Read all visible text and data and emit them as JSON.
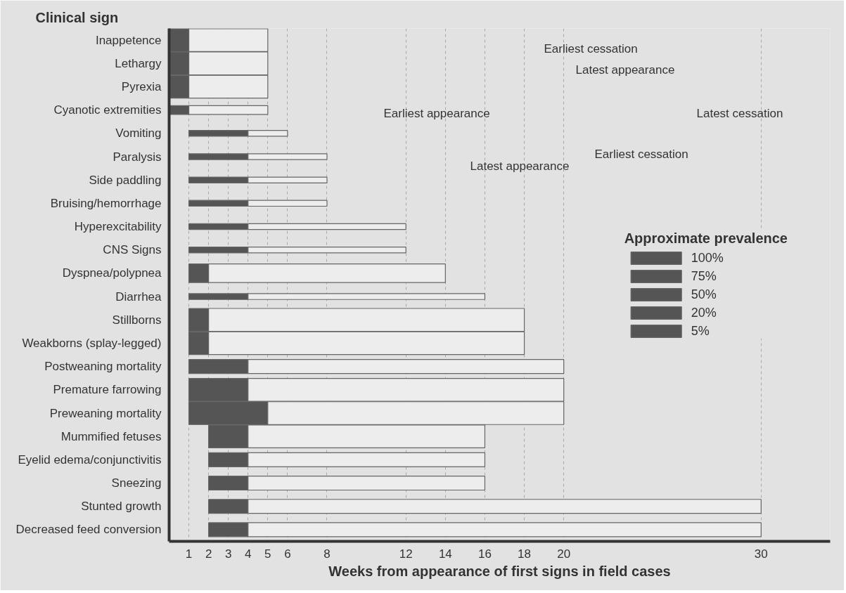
{
  "chart_data": {
    "type": "bar",
    "orientation": "horizontal",
    "ylabel": "Clinical sign",
    "xlabel": "Weeks from appearance of first signs in field cases",
    "legend_title": "Approximate prevalence",
    "categories": [
      "Inappetence",
      "Lethargy",
      "Pyrexia",
      "Cyanotic extremities",
      "Vomiting",
      "Paralysis",
      "Side paddling",
      "Bruising/hemorrhage",
      "Hyperexcitability",
      "CNS Signs",
      "Dyspnea/polypnea",
      "Diarrhea",
      "Stillborns",
      "Weakborns (splay-legged)",
      "Postweaning mortality",
      "Premature farrowing",
      "Preweaning mortality",
      "Mummified fetuses",
      "Eyelid edema/conjunctivitis",
      "Sneezing",
      "Stunted growth",
      "Decreased feed conversion"
    ],
    "series": [
      {
        "name": "100%",
        "color": "#555555",
        "base": [
          0,
          0,
          0,
          null,
          null,
          null,
          null,
          null,
          null,
          null,
          null,
          null,
          1,
          1,
          null,
          1,
          1,
          2,
          null,
          null,
          null,
          null
        ],
        "values": [
          1,
          1,
          1,
          null,
          null,
          null,
          null,
          null,
          null,
          null,
          null,
          null,
          1,
          1,
          null,
          3,
          4,
          2,
          null,
          null,
          null,
          null
        ]
      },
      {
        "color": "#ededed",
        "base": [
          1,
          1,
          1,
          null,
          null,
          null,
          null,
          null,
          null,
          null,
          null,
          null,
          2,
          2,
          null,
          4,
          5,
          4,
          null,
          null,
          null,
          null
        ],
        "values": [
          4,
          4,
          4,
          null,
          null,
          null,
          null,
          null,
          null,
          null,
          null,
          null,
          16,
          16,
          null,
          16,
          15,
          12,
          null,
          null,
          null,
          null
        ]
      },
      {
        "name": "75%",
        "color": "#555555",
        "base": [
          null,
          null,
          null,
          null,
          null,
          null,
          null,
          null,
          null,
          null,
          1,
          null,
          null,
          null,
          null,
          null,
          null,
          null,
          null,
          null,
          null,
          null
        ],
        "values": [
          null,
          null,
          null,
          null,
          null,
          null,
          null,
          null,
          null,
          null,
          1,
          null,
          null,
          null,
          null,
          null,
          null,
          null,
          null,
          null,
          null,
          null
        ]
      },
      {
        "color": "#ededed",
        "base": [
          null,
          null,
          null,
          null,
          null,
          null,
          null,
          null,
          null,
          null,
          2,
          null,
          null,
          null,
          null,
          null,
          null,
          null,
          null,
          null,
          null,
          null
        ],
        "values": [
          null,
          null,
          null,
          null,
          null,
          null,
          null,
          null,
          null,
          null,
          12,
          null,
          null,
          null,
          null,
          null,
          null,
          null,
          null,
          null,
          null,
          null
        ]
      },
      {
        "name": "50%",
        "color": "#555555",
        "base": [
          null,
          null,
          null,
          null,
          null,
          null,
          null,
          null,
          null,
          null,
          null,
          null,
          null,
          null,
          1,
          null,
          null,
          null,
          2,
          2,
          2,
          2
        ],
        "values": [
          null,
          null,
          null,
          null,
          null,
          null,
          null,
          null,
          null,
          null,
          null,
          null,
          null,
          null,
          3,
          null,
          null,
          null,
          2,
          2,
          2,
          2
        ]
      },
      {
        "color": "#ededed",
        "base": [
          null,
          null,
          null,
          null,
          null,
          null,
          null,
          null,
          null,
          null,
          null,
          null,
          null,
          null,
          4,
          null,
          null,
          null,
          4,
          4,
          4,
          4
        ],
        "values": [
          null,
          null,
          null,
          null,
          null,
          null,
          null,
          null,
          null,
          null,
          null,
          null,
          null,
          null,
          16,
          null,
          null,
          null,
          12,
          12,
          26,
          26
        ]
      },
      {
        "name": "20%",
        "color": "#555555",
        "base": [
          null,
          null,
          null,
          0,
          null,
          null,
          null,
          null,
          null,
          null,
          null,
          null,
          null,
          null,
          null,
          null,
          null,
          null,
          null,
          null,
          null,
          null
        ],
        "values": [
          null,
          null,
          null,
          1,
          null,
          null,
          null,
          null,
          null,
          null,
          null,
          null,
          null,
          null,
          null,
          null,
          null,
          null,
          null,
          null,
          null,
          null
        ]
      },
      {
        "color": "#ededed",
        "base": [
          null,
          null,
          null,
          1,
          null,
          null,
          null,
          null,
          null,
          null,
          null,
          null,
          null,
          null,
          null,
          null,
          null,
          null,
          null,
          null,
          null,
          null
        ],
        "values": [
          null,
          null,
          null,
          4,
          null,
          null,
          null,
          null,
          null,
          null,
          null,
          null,
          null,
          null,
          null,
          null,
          null,
          null,
          null,
          null,
          null,
          null
        ]
      },
      {
        "name": "5%",
        "color": "#555555",
        "base": [
          null,
          null,
          null,
          null,
          1,
          1,
          1,
          1,
          1,
          1,
          null,
          1,
          null,
          null,
          null,
          null,
          null,
          null,
          null,
          null,
          null,
          null
        ],
        "values": [
          null,
          null,
          null,
          null,
          3,
          3,
          3,
          3,
          3,
          3,
          null,
          3,
          null,
          null,
          null,
          null,
          null,
          null,
          null,
          null,
          null,
          null
        ]
      },
      {
        "color": "#ededed",
        "base": [
          null,
          null,
          null,
          null,
          4,
          4,
          4,
          4,
          4,
          4,
          null,
          4,
          null,
          null,
          null,
          null,
          null,
          null,
          null,
          null,
          null,
          null
        ],
        "values": [
          null,
          null,
          null,
          null,
          2,
          4,
          4,
          4,
          8,
          8,
          null,
          12,
          null,
          null,
          null,
          null,
          null,
          null,
          null,
          null,
          null,
          null
        ]
      }
    ],
    "xlim": [
      0,
      33.5
    ],
    "xticks": [
      1,
      2,
      3,
      4,
      5,
      6,
      8,
      12,
      14,
      16,
      18,
      20,
      30
    ],
    "grid": "x",
    "legend": "right",
    "annotations": [
      "Earliest cessation",
      "Latest appearance",
      "Earliest appearance",
      "Latest cessation",
      "Latest appearance",
      "Earliest cessation"
    ]
  }
}
